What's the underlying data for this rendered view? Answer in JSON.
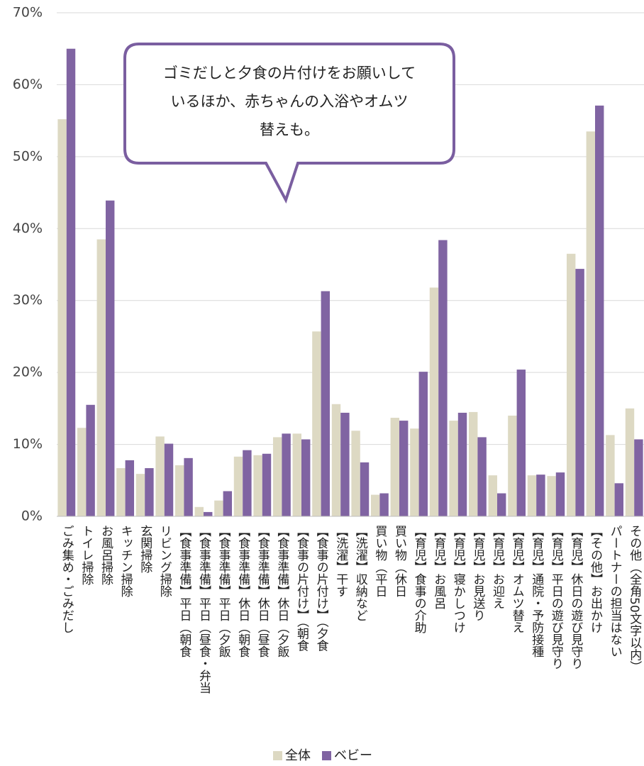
{
  "chart_data": {
    "type": "bar",
    "annotation": [
      "ゴミだしと夕食の片付けをお願いして",
      "いるほか、赤ちゃんの入浴やオムツ",
      "替えも。"
    ],
    "categories": [
      "ごみ集め・ごみだし",
      "トイレ掃除",
      "お風呂掃除",
      "キッチン掃除",
      "玄関掃除",
      "リビング掃除",
      "【食事準備】平日（朝食",
      "【食事準備】平日（昼食・弁当",
      "【食事準備】平日（夕飯",
      "【食事準備】休日（朝食",
      "【食事準備】休日（昼食",
      "【食事準備】休日（夕飯",
      "【食事の片付け】（朝食",
      "【食事の片付け】（夕食",
      "【洗濯】干す",
      "【洗濯】収納など",
      "買い物（平日",
      "買い物（休日",
      "【育児】食事の介助",
      "【育児】お風呂",
      "【育児】寝かしつけ",
      "【育児】お見送り",
      "【育児】お迎え",
      "【育児】オムツ替え",
      "【育児】通院・予防接種",
      "【育児】平日の遊び見守り",
      "【育児】休日の遊び見守り",
      "【その他】お出かけ",
      "パートナーの担当はない",
      "その他（全角50文字以内）"
    ],
    "series": [
      {
        "name": "全体",
        "color": "#ddd9c3",
        "values": [
          55.2,
          12.3,
          38.5,
          6.7,
          5.9,
          11.1,
          7.1,
          1.3,
          2.2,
          8.3,
          8.5,
          11.0,
          11.5,
          25.7,
          15.6,
          11.9,
          3.0,
          13.7,
          12.2,
          31.8,
          13.3,
          14.5,
          5.7,
          14.0,
          5.7,
          5.6,
          36.5,
          53.5,
          11.3,
          15.0
        ]
      },
      {
        "name": "ベビー",
        "color": "#8064a2",
        "values": [
          65.0,
          15.5,
          43.9,
          7.8,
          6.7,
          10.1,
          8.1,
          0.6,
          3.5,
          9.2,
          8.7,
          11.5,
          10.7,
          31.3,
          14.4,
          7.5,
          3.2,
          13.3,
          20.1,
          38.4,
          14.4,
          11.0,
          3.2,
          20.4,
          5.8,
          6.1,
          34.4,
          57.1,
          4.6,
          10.7
        ]
      }
    ],
    "ylim": [
      0,
      70
    ],
    "yticks": [
      {
        "value": 0,
        "label": "0%"
      },
      {
        "value": 10,
        "label": "10%"
      },
      {
        "value": 20,
        "label": "20%"
      },
      {
        "value": 30,
        "label": "30%"
      },
      {
        "value": 40,
        "label": "40%"
      },
      {
        "value": 50,
        "label": "50%"
      },
      {
        "value": 60,
        "label": "60%"
      },
      {
        "value": 70,
        "label": "70%"
      }
    ],
    "grid": true
  }
}
